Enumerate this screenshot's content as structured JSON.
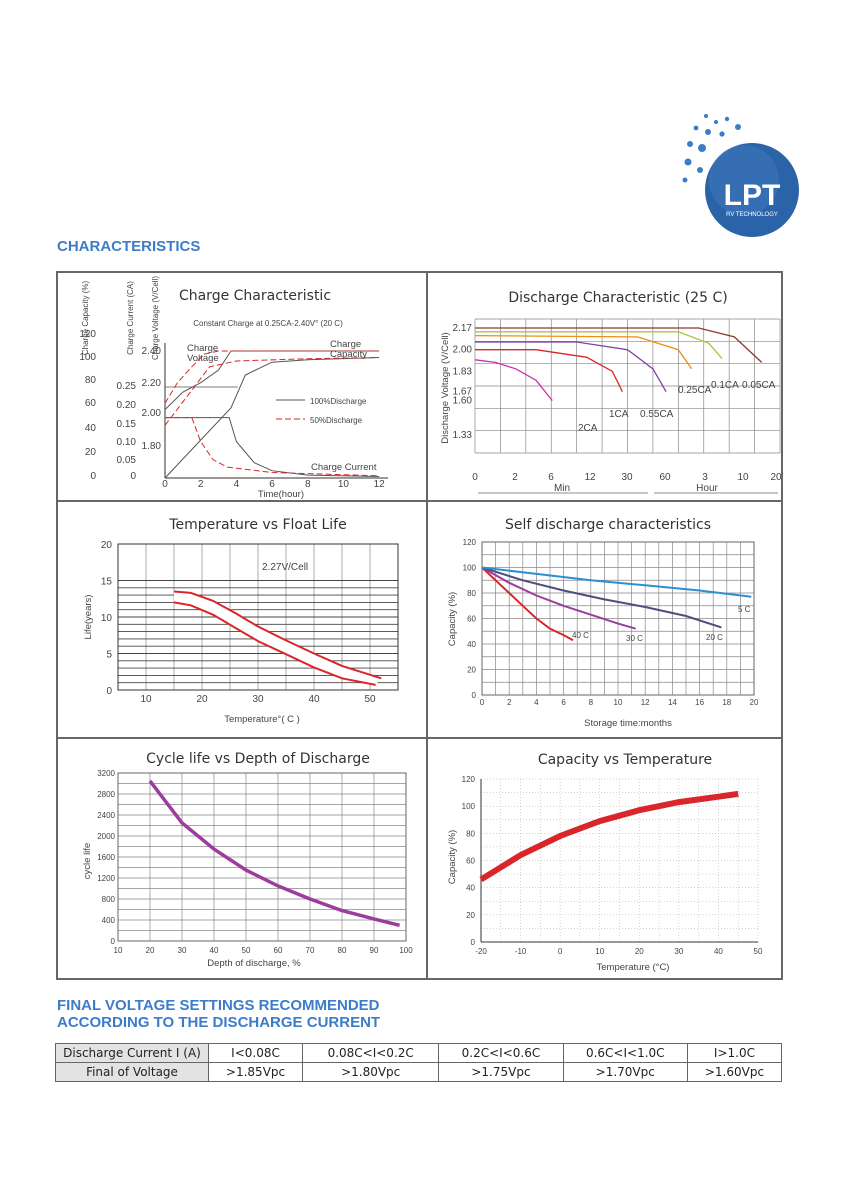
{
  "heading": "CHARACTERISTICS",
  "logo": {
    "text": "LPT",
    "subtext": "RV TECHNOLOGY",
    "color": "#2a63a8"
  },
  "colors": {
    "heading": "#3d7cc9",
    "red": "#d9262a",
    "purple": "#9c3d9b"
  },
  "chart_data": [
    {
      "type": "line",
      "title": "Charge Characteristic",
      "subtitle": "Constant Charge at 0.25CA-2.40V° (20 C)",
      "xlabel": "Time(hour)",
      "x_ticks": [
        "0",
        "2",
        "4",
        "6",
        "8",
        "10",
        "12"
      ],
      "xlim": [
        0,
        12.5
      ],
      "axis_titles": [
        "Charge Capacity (%)",
        "Charge Current (CA)",
        "Charge Voltage (V/Cell)"
      ],
      "capacity_ticks": [
        "120",
        "100",
        "80",
        "60",
        "40",
        "20",
        "0"
      ],
      "current_ticks": [
        "0.25",
        "0.20",
        "0.15",
        "0.10",
        "0.05",
        "0"
      ],
      "voltage_ticks": [
        "2.40",
        "2.20",
        "2.00",
        "1.80"
      ],
      "annotations": [
        "Charge Voltage",
        "Charge Capacity",
        "Charge Current"
      ],
      "legend": [
        "100%Discharge",
        "50%Discharge"
      ],
      "legend_colors": [
        "#555555",
        "#d9262a"
      ],
      "series": [
        {
          "name": "100%Discharge",
          "points": [
            [
              0,
              0
            ],
            [
              3.7,
              60
            ],
            [
              4.5,
              88
            ],
            [
              6,
              99
            ],
            [
              8,
              101
            ],
            [
              12,
              103
            ]
          ],
          "axis": "capacity"
        },
        {
          "name": "100%Discharge",
          "points": [
            [
              0,
              2.03
            ],
            [
              1,
              2.14
            ],
            [
              2,
              2.2
            ],
            [
              3,
              2.28
            ],
            [
              3.7,
              2.4
            ],
            [
              12,
              2.4
            ]
          ],
          "axis": "voltage"
        },
        {
          "name": "100%Discharge",
          "points": [
            [
              0,
              0.166
            ],
            [
              3.6,
              0.166
            ],
            [
              4,
              0.1
            ],
            [
              5,
              0.042
            ],
            [
              6,
              0.02
            ],
            [
              8,
              0.008
            ],
            [
              12,
              0.004
            ]
          ],
          "axis": "current"
        },
        {
          "name": "50%Discharge",
          "points": [
            [
              0,
              45
            ],
            [
              1.5,
              75
            ],
            [
              2.5,
              95
            ],
            [
              4,
              100
            ],
            [
              8,
              102
            ],
            [
              12,
              103
            ]
          ],
          "axis": "capacity"
        },
        {
          "name": "50%Discharge",
          "points": [
            [
              0,
              2.07
            ],
            [
              0.7,
              2.2
            ],
            [
              1.5,
              2.3
            ],
            [
              2.2,
              2.38
            ],
            [
              3,
              2.4
            ],
            [
              12,
              2.4
            ]
          ],
          "axis": "voltage"
        },
        {
          "name": "50%Discharge",
          "points": [
            [
              0,
              0.166
            ],
            [
              1.5,
              0.166
            ],
            [
              2,
              0.1
            ],
            [
              2.7,
              0.05
            ],
            [
              3.5,
              0.03
            ],
            [
              6,
              0.015
            ],
            [
              12,
              0.006
            ]
          ],
          "axis": "current"
        }
      ]
    },
    {
      "type": "line",
      "title": "Discharge Characteristic (25 C)",
      "ylabel": "Discharge Voltage (V/Cell)",
      "y_ticks": [
        "2.17",
        "2.00",
        "1.83",
        "1.67",
        "1.60",
        "1.33"
      ],
      "x_ticks": [
        "0",
        "2",
        "6",
        "12",
        "30",
        "60",
        "3",
        "10",
        "20"
      ],
      "x_units": [
        "Min",
        "Hour"
      ],
      "series": [
        {
          "name": "2CA",
          "color": "#cc2fa6",
          "points": [
            [
              0,
              1.92
            ],
            [
              2,
              1.9
            ],
            [
              4,
              1.85
            ],
            [
              6,
              1.76
            ],
            [
              7.6,
              1.6
            ]
          ]
        },
        {
          "name": "1CA",
          "color": "#d9262a",
          "points": [
            [
              0,
              2.0
            ],
            [
              6,
              2.0
            ],
            [
              11,
              1.94
            ],
            [
              13.5,
              1.83
            ],
            [
              14.5,
              1.67
            ]
          ]
        },
        {
          "name": "0.55CA",
          "color": "#7e3fa6",
          "points": [
            [
              0,
              2.06
            ],
            [
              10,
              2.06
            ],
            [
              15,
              2.0
            ],
            [
              17.5,
              1.85
            ],
            [
              18.8,
              1.67
            ]
          ]
        },
        {
          "name": "0.25CA",
          "color": "#f08c1a",
          "points": [
            [
              0,
              2.11
            ],
            [
              16,
              2.1
            ],
            [
              20,
              2.0
            ],
            [
              21.3,
              1.85
            ]
          ]
        },
        {
          "name": "0.1CA",
          "color": "#a4c93a",
          "points": [
            [
              0,
              2.14
            ],
            [
              20,
              2.14
            ],
            [
              23,
              2.05
            ],
            [
              24.3,
              1.93
            ]
          ]
        },
        {
          "name": "0.05CA",
          "color": "#8b3a2a",
          "points": [
            [
              0,
              2.17
            ],
            [
              22,
              2.17
            ],
            [
              25.5,
              2.1
            ],
            [
              28.2,
              1.9
            ]
          ]
        }
      ]
    },
    {
      "type": "area",
      "title": "Temperature vs Float Life",
      "xlabel": "Temperature°( C )",
      "ylabel": "Life(years)",
      "x_ticks": [
        "10",
        "20",
        "30",
        "40",
        "50"
      ],
      "y_ticks": [
        "20",
        "15",
        "10",
        "5",
        "0"
      ],
      "annotation": "2.27V/Cell",
      "series": [
        {
          "name": "upper",
          "points": [
            [
              15,
              13.5
            ],
            [
              18,
              13.3
            ],
            [
              22,
              12.2
            ],
            [
              26,
              10.5
            ],
            [
              30,
              8.7
            ],
            [
              35,
              6.8
            ],
            [
              40,
              5.0
            ],
            [
              45,
              3.3
            ],
            [
              52,
              1.6
            ]
          ]
        },
        {
          "name": "lower",
          "points": [
            [
              15,
              12
            ],
            [
              18,
              11.6
            ],
            [
              22,
              10.3
            ],
            [
              26,
              8.5
            ],
            [
              30,
              6.7
            ],
            [
              35,
              4.9
            ],
            [
              40,
              3.1
            ],
            [
              45,
              1.6
            ],
            [
              51,
              0.7
            ]
          ]
        }
      ]
    },
    {
      "type": "line",
      "title": "Self discharge characteristics",
      "xlabel": "Storage time:months",
      "ylabel": "Capacity (%)",
      "x_ticks": [
        "0",
        "2",
        "4",
        "6",
        "8",
        "10",
        "12",
        "14",
        "16",
        "18",
        "20"
      ],
      "y_ticks": [
        "120",
        "100",
        "80",
        "60",
        "40",
        "20",
        "0"
      ],
      "series": [
        {
          "name": "40 C",
          "color": "#d9262a",
          "points": [
            [
              0,
              100
            ],
            [
              1,
              90
            ],
            [
              2,
              80
            ],
            [
              3,
              70
            ],
            [
              4,
              60
            ],
            [
              5,
              52
            ],
            [
              6,
              47
            ],
            [
              6.7,
              43
            ]
          ]
        },
        {
          "name": "30 C",
          "color": "#9c3d9b",
          "points": [
            [
              0,
              100
            ],
            [
              2,
              88
            ],
            [
              4,
              78
            ],
            [
              6,
              70
            ],
            [
              8,
              63
            ],
            [
              10,
              56
            ],
            [
              11.3,
              52
            ]
          ]
        },
        {
          "name": "20 C",
          "color": "#4a4f7e",
          "points": [
            [
              0,
              100
            ],
            [
              3,
              90
            ],
            [
              6,
              82
            ],
            [
              9,
              75
            ],
            [
              12,
              69
            ],
            [
              15,
              62
            ],
            [
              17.6,
              53
            ]
          ]
        },
        {
          "name": "5 C",
          "color": "#2b8fd1",
          "points": [
            [
              0,
              100
            ],
            [
              4,
              95
            ],
            [
              8,
              90
            ],
            [
              12,
              86
            ],
            [
              16,
              82
            ],
            [
              19.8,
              77
            ]
          ]
        }
      ]
    },
    {
      "type": "line",
      "title": "Cycle life vs Depth of Discharge",
      "xlabel": "Depth of discharge, %",
      "ylabel": "cycle life",
      "x_ticks": [
        "10",
        "20",
        "30",
        "40",
        "50",
        "60",
        "70",
        "80",
        "90",
        "100"
      ],
      "y_ticks": [
        "3200",
        "2800",
        "2400",
        "2000",
        "1600",
        "1200",
        "800",
        "400",
        "0"
      ],
      "series": [
        {
          "name": "cycle life",
          "color": "#9c3d9b",
          "points": [
            [
              20,
              3050
            ],
            [
              25,
              2650
            ],
            [
              30,
              2250
            ],
            [
              40,
              1750
            ],
            [
              50,
              1350
            ],
            [
              60,
              1050
            ],
            [
              70,
              800
            ],
            [
              80,
              580
            ],
            [
              90,
              420
            ],
            [
              98,
              300
            ]
          ]
        }
      ]
    },
    {
      "type": "line",
      "title": "Capacity vs Temperature",
      "xlabel": "Temperature (°C)",
      "ylabel": "Capacity (%)",
      "x_ticks": [
        "-20",
        "-10",
        "0",
        "10",
        "20",
        "30",
        "40",
        "50"
      ],
      "y_ticks": [
        "120",
        "100",
        "80",
        "60",
        "40",
        "20",
        "0"
      ],
      "series": [
        {
          "name": "capacity",
          "color": "#d9262a",
          "points": [
            [
              -20,
              46
            ],
            [
              -10,
              64
            ],
            [
              0,
              78
            ],
            [
              10,
              89
            ],
            [
              20,
              97
            ],
            [
              30,
              103
            ],
            [
              40,
              107
            ],
            [
              45,
              109
            ]
          ]
        }
      ]
    }
  ],
  "table_heading": [
    "FINAL VOLTAGE SETTINGS RECOMMENDED",
    "ACCORDING TO THE DISCHARGE CURRENT"
  ],
  "table": {
    "rows": [
      [
        "Discharge Current I  (A)",
        "I<0.08C",
        "0.08C<I<0.2C",
        "0.2C<I<0.6C",
        "0.6C<I<1.0C",
        "I>1.0C"
      ],
      [
        "Final of Voltage",
        ">1.85Vpc",
        ">1.80Vpc",
        ">1.75Vpc",
        ">1.70Vpc",
        ">1.60Vpc"
      ]
    ]
  }
}
